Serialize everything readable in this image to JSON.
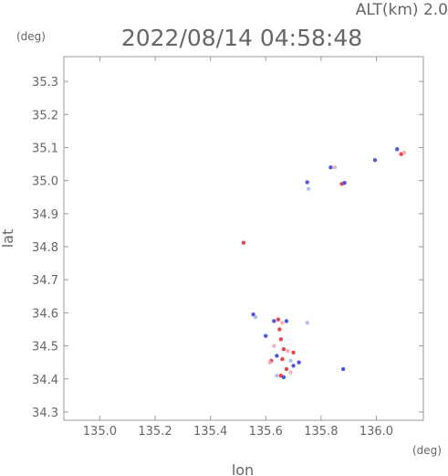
{
  "header": {
    "altitude_label": "ALT(km) 2.0",
    "timestamp": "2022/08/14 04:58:48"
  },
  "chart_data": {
    "type": "scatter",
    "xlabel": "lon",
    "ylabel": "lat",
    "x_unit": "(deg)",
    "y_unit": "(deg)",
    "xlim": [
      134.87,
      136.17
    ],
    "ylim": [
      34.275,
      35.375
    ],
    "x_ticks": [
      "135.0",
      "135.2",
      "135.4",
      "135.6",
      "135.8",
      "136.0"
    ],
    "y_ticks": [
      "34.3",
      "34.4",
      "34.5",
      "34.6",
      "34.7",
      "34.8",
      "34.9",
      "35.0",
      "35.1",
      "35.2",
      "35.3"
    ],
    "grid": false,
    "colors": {
      "frame": "#999999",
      "red": "#e8303a",
      "pink": "#f2a8b0",
      "blue": "#3a45e0",
      "light_blue": "#a8b8f0"
    },
    "clusters": [
      {
        "lon": 135.52,
        "lat": 34.812,
        "color": "red"
      },
      {
        "lon": 135.555,
        "lat": 34.595,
        "color": "blue"
      },
      {
        "lon": 135.563,
        "lat": 34.587,
        "color": "light_blue"
      },
      {
        "lon": 135.63,
        "lat": 34.575,
        "color": "blue"
      },
      {
        "lon": 135.645,
        "lat": 34.58,
        "color": "red"
      },
      {
        "lon": 135.66,
        "lat": 34.57,
        "color": "pink"
      },
      {
        "lon": 135.675,
        "lat": 34.575,
        "color": "blue"
      },
      {
        "lon": 135.65,
        "lat": 34.55,
        "color": "red"
      },
      {
        "lon": 135.6,
        "lat": 34.53,
        "color": "blue"
      },
      {
        "lon": 135.655,
        "lat": 34.52,
        "color": "red"
      },
      {
        "lon": 135.63,
        "lat": 34.5,
        "color": "pink"
      },
      {
        "lon": 135.665,
        "lat": 34.49,
        "color": "red"
      },
      {
        "lon": 135.68,
        "lat": 34.485,
        "color": "pink"
      },
      {
        "lon": 135.7,
        "lat": 34.48,
        "color": "red"
      },
      {
        "lon": 135.64,
        "lat": 34.47,
        "color": "blue"
      },
      {
        "lon": 135.66,
        "lat": 34.46,
        "color": "red"
      },
      {
        "lon": 135.62,
        "lat": 34.455,
        "color": "red"
      },
      {
        "lon": 135.615,
        "lat": 34.45,
        "color": "pink"
      },
      {
        "lon": 135.69,
        "lat": 34.455,
        "color": "light_blue"
      },
      {
        "lon": 135.7,
        "lat": 34.44,
        "color": "blue"
      },
      {
        "lon": 135.72,
        "lat": 34.45,
        "color": "blue"
      },
      {
        "lon": 135.675,
        "lat": 34.43,
        "color": "red"
      },
      {
        "lon": 135.69,
        "lat": 34.42,
        "color": "pink"
      },
      {
        "lon": 135.655,
        "lat": 34.41,
        "color": "red"
      },
      {
        "lon": 135.665,
        "lat": 34.405,
        "color": "blue"
      },
      {
        "lon": 135.64,
        "lat": 34.41,
        "color": "light_blue"
      },
      {
        "lon": 135.75,
        "lat": 34.57,
        "color": "light_blue"
      },
      {
        "lon": 135.88,
        "lat": 34.43,
        "color": "blue"
      },
      {
        "lon": 135.75,
        "lat": 34.995,
        "color": "blue"
      },
      {
        "lon": 135.755,
        "lat": 34.975,
        "color": "light_blue"
      },
      {
        "lon": 135.835,
        "lat": 35.04,
        "color": "blue"
      },
      {
        "lon": 135.85,
        "lat": 35.04,
        "color": "pink"
      },
      {
        "lon": 135.875,
        "lat": 34.99,
        "color": "red"
      },
      {
        "lon": 135.885,
        "lat": 34.993,
        "color": "blue"
      },
      {
        "lon": 135.995,
        "lat": 35.062,
        "color": "blue"
      },
      {
        "lon": 136.075,
        "lat": 35.095,
        "color": "blue"
      },
      {
        "lon": 136.09,
        "lat": 35.08,
        "color": "red"
      },
      {
        "lon": 136.1,
        "lat": 35.085,
        "color": "pink"
      }
    ]
  }
}
